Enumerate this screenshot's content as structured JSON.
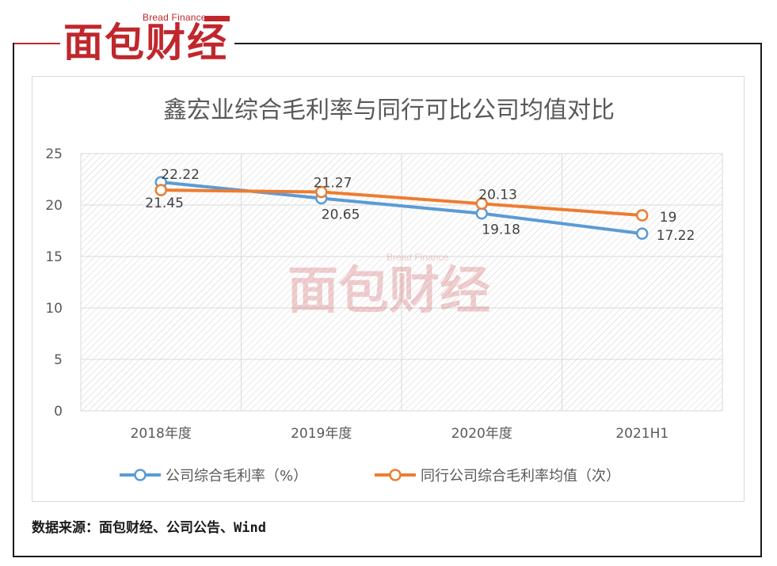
{
  "brand": {
    "name_en": "Bread Finance",
    "name_cn": "面包财经"
  },
  "source_text": "数据来源：面包财经、公司公告、Wind",
  "colors": {
    "brand_red": "#c0272d",
    "series_blue": "#5b9bd5",
    "series_orange": "#ed7d31"
  },
  "chart_data": {
    "type": "line",
    "title": "鑫宏业综合毛利率与同行可比公司均值对比",
    "categories": [
      "2018年度",
      "2019年度",
      "2020年度",
      "2021H1"
    ],
    "ylim": [
      0,
      25
    ],
    "yticks": [
      0,
      5,
      10,
      15,
      20,
      25
    ],
    "grid": true,
    "legend_position": "bottom",
    "series": [
      {
        "name": "公司综合毛利率（%）",
        "color": "#5b9bd5",
        "values": [
          22.22,
          20.65,
          19.18,
          17.22
        ],
        "labels": [
          "22.22",
          "20.65",
          "19.18",
          "17.22"
        ]
      },
      {
        "name": "同行公司综合毛利率均值（次）",
        "color": "#ed7d31",
        "values": [
          21.45,
          21.27,
          20.13,
          19
        ],
        "labels": [
          "21.45",
          "21.27",
          "20.13",
          "19"
        ]
      }
    ]
  }
}
